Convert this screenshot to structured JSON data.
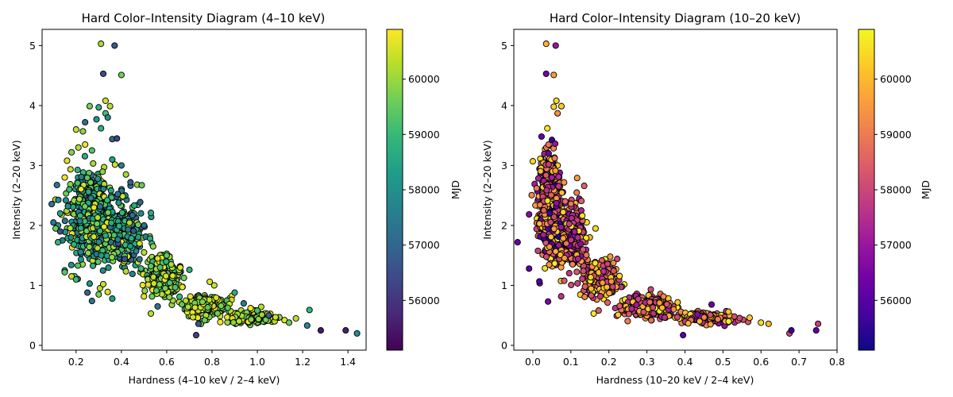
{
  "chart_data": [
    {
      "type": "scatter",
      "title": "Hard Color–Intensity Diagram (4–10 keV)",
      "xlabel": "Hardness (4–10 keV / 2–4 keV)",
      "ylabel": "Intensity (2–20 keV)",
      "xlim": [
        0.05,
        1.48
      ],
      "ylim": [
        -0.08,
        5.27
      ],
      "xticks": [
        0.2,
        0.4,
        0.6,
        0.8,
        1.0,
        1.2,
        1.4
      ],
      "xtick_labels": [
        "0.2",
        "0.4",
        "0.6",
        "0.8",
        "1.0",
        "1.2",
        "1.4"
      ],
      "yticks": [
        0,
        1,
        2,
        3,
        4,
        5
      ],
      "ytick_labels": [
        "0",
        "1",
        "2",
        "3",
        "4",
        "5"
      ],
      "colormap": "viridis",
      "colormap_colors": [
        "#440154",
        "#482878",
        "#3e4989",
        "#31688e",
        "#26828e",
        "#1f9e89",
        "#35b779",
        "#6ece58",
        "#b5de2b",
        "#fde725"
      ],
      "colorbar_label": "MJD",
      "colorbar_range": [
        55100,
        60900
      ],
      "colorbar_ticks": [
        56000,
        57000,
        58000,
        59000,
        60000
      ],
      "colorbar_tick_labels": [
        "56000",
        "57000",
        "58000",
        "59000",
        "60000"
      ],
      "grid": false,
      "points": [
        {
          "x": 0.31,
          "y": 5.03,
          "c": 60150
        },
        {
          "x": 0.37,
          "y": 5.0,
          "c": 56700
        },
        {
          "x": 0.32,
          "y": 4.53,
          "c": 56400
        },
        {
          "x": 0.4,
          "y": 4.51,
          "c": 59600
        },
        {
          "x": 0.33,
          "y": 4.08,
          "c": 60500
        },
        {
          "x": 0.26,
          "y": 3.99,
          "c": 59700
        },
        {
          "x": 0.3,
          "y": 3.97,
          "c": 58700
        },
        {
          "x": 0.35,
          "y": 3.99,
          "c": 60300
        },
        {
          "x": 0.29,
          "y": 3.77,
          "c": 58200
        },
        {
          "x": 0.24,
          "y": 3.72,
          "c": 57200
        },
        {
          "x": 0.33,
          "y": 3.87,
          "c": 59200
        },
        {
          "x": 0.34,
          "y": 3.8,
          "c": 57900
        },
        {
          "x": 0.2,
          "y": 3.6,
          "c": 60400
        },
        {
          "x": 0.23,
          "y": 3.57,
          "c": 59900
        },
        {
          "x": 0.31,
          "y": 3.62,
          "c": 58800
        },
        {
          "x": 0.36,
          "y": 3.44,
          "c": 57100
        },
        {
          "x": 0.38,
          "y": 3.45,
          "c": 56300
        },
        {
          "x": 0.24,
          "y": 3.35,
          "c": 60700
        },
        {
          "x": 0.27,
          "y": 3.25,
          "c": 59300
        },
        {
          "x": 0.21,
          "y": 3.3,
          "c": 60200
        },
        {
          "x": 0.18,
          "y": 3.22,
          "c": 59800
        },
        {
          "x": 0.16,
          "y": 3.08,
          "c": 60600
        },
        {
          "x": 0.36,
          "y": 3.1,
          "c": 58400
        },
        {
          "x": 0.4,
          "y": 3.0,
          "c": 57600
        },
        {
          "x": 0.42,
          "y": 2.85,
          "c": 60100
        },
        {
          "x": 0.44,
          "y": 2.72,
          "c": 56800
        },
        {
          "x": 0.47,
          "y": 2.68,
          "c": 60000
        },
        {
          "x": 0.49,
          "y": 2.67,
          "c": 59500
        },
        {
          "x": 0.15,
          "y": 2.8,
          "c": 60800
        },
        {
          "x": 0.17,
          "y": 2.6,
          "c": 59000
        },
        {
          "x": 0.13,
          "y": 2.2,
          "c": 58500
        },
        {
          "x": 0.12,
          "y": 2.0,
          "c": 58100
        },
        {
          "x": 0.1,
          "y": 2.05,
          "c": 57400
        },
        {
          "x": 0.11,
          "y": 1.95,
          "c": 59600
        },
        {
          "x": 0.13,
          "y": 1.9,
          "c": 56500
        },
        {
          "x": 0.14,
          "y": 1.75,
          "c": 57700
        },
        {
          "x": 0.12,
          "y": 1.72,
          "c": 58900
        },
        {
          "x": 0.15,
          "y": 1.25,
          "c": 58600
        },
        {
          "x": 0.15,
          "y": 1.22,
          "c": 59400
        },
        {
          "x": 0.18,
          "y": 1.15,
          "c": 60300
        },
        {
          "x": 0.2,
          "y": 1.1,
          "c": 59100
        },
        {
          "x": 0.25,
          "y": 0.88,
          "c": 56900
        },
        {
          "x": 0.27,
          "y": 0.74,
          "c": 57300
        },
        {
          "x": 0.3,
          "y": 0.85,
          "c": 59700
        },
        {
          "x": 0.36,
          "y": 0.78,
          "c": 58300
        },
        {
          "x": 0.32,
          "y": 1.02,
          "c": 60400
        },
        {
          "x": 0.26,
          "y": 1.03,
          "c": 58000
        },
        {
          "x": 0.53,
          "y": 2.21,
          "c": 58600
        },
        {
          "x": 0.5,
          "y": 2.0,
          "c": 57200
        },
        {
          "x": 0.48,
          "y": 1.7,
          "c": 60500
        },
        {
          "x": 0.5,
          "y": 1.55,
          "c": 60200
        },
        {
          "x": 0.54,
          "y": 1.65,
          "c": 59900
        },
        {
          "x": 0.56,
          "y": 1.45,
          "c": 60600
        },
        {
          "x": 0.6,
          "y": 1.5,
          "c": 59400
        },
        {
          "x": 0.62,
          "y": 1.35,
          "c": 60100
        },
        {
          "x": 0.66,
          "y": 1.3,
          "c": 60700
        },
        {
          "x": 0.7,
          "y": 1.26,
          "c": 58800
        },
        {
          "x": 0.53,
          "y": 0.53,
          "c": 60300
        },
        {
          "x": 0.56,
          "y": 0.65,
          "c": 57400
        },
        {
          "x": 0.73,
          "y": 0.17,
          "c": 56200
        },
        {
          "x": 0.74,
          "y": 0.36,
          "c": 56600
        },
        {
          "x": 0.79,
          "y": 1.06,
          "c": 60600
        },
        {
          "x": 0.81,
          "y": 1.0,
          "c": 60400
        },
        {
          "x": 0.9,
          "y": 0.88,
          "c": 58700
        },
        {
          "x": 0.94,
          "y": 0.7,
          "c": 57500
        },
        {
          "x": 0.97,
          "y": 0.62,
          "c": 60800
        },
        {
          "x": 1.0,
          "y": 0.58,
          "c": 59200
        },
        {
          "x": 1.02,
          "y": 0.51,
          "c": 60000
        },
        {
          "x": 1.05,
          "y": 0.5,
          "c": 56800
        },
        {
          "x": 1.08,
          "y": 0.47,
          "c": 60500
        },
        {
          "x": 1.12,
          "y": 0.42,
          "c": 60700
        },
        {
          "x": 1.14,
          "y": 0.38,
          "c": 59500
        },
        {
          "x": 1.17,
          "y": 0.45,
          "c": 60300
        },
        {
          "x": 1.22,
          "y": 0.33,
          "c": 57800
        },
        {
          "x": 1.23,
          "y": 0.59,
          "c": 58900
        },
        {
          "x": 1.28,
          "y": 0.25,
          "c": 55500
        },
        {
          "x": 1.39,
          "y": 0.25,
          "c": 55600
        },
        {
          "x": 1.44,
          "y": 0.2,
          "c": 57900
        }
      ],
      "point_cloud": [
        {
          "x_center": 0.27,
          "x_spread": 0.09,
          "y_center": 2.15,
          "y_spread": 0.6,
          "count": 620,
          "c_min": 57300,
          "c_max": 60800
        },
        {
          "x_center": 0.42,
          "x_spread": 0.06,
          "y_center": 1.85,
          "y_spread": 0.4,
          "count": 240,
          "c_min": 56500,
          "c_max": 60800
        },
        {
          "x_center": 0.58,
          "x_spread": 0.07,
          "y_center": 1.15,
          "y_spread": 0.28,
          "count": 230,
          "c_min": 58800,
          "c_max": 60800
        },
        {
          "x_center": 0.77,
          "x_spread": 0.08,
          "y_center": 0.65,
          "y_spread": 0.15,
          "count": 280,
          "c_min": 59200,
          "c_max": 60800
        },
        {
          "x_center": 0.98,
          "x_spread": 0.08,
          "y_center": 0.46,
          "y_spread": 0.08,
          "count": 170,
          "c_min": 59500,
          "c_max": 60800
        }
      ]
    },
    {
      "type": "scatter",
      "title": "Hard Color–Intensity Diagram (10–20 keV)",
      "xlabel": "Hardness (10–20 keV / 2–4 keV)",
      "ylabel": "Intensity (2–20 keV)",
      "xlim": [
        -0.05,
        0.8
      ],
      "ylim": [
        -0.08,
        5.27
      ],
      "xticks": [
        0.0,
        0.1,
        0.2,
        0.3,
        0.4,
        0.5,
        0.6,
        0.7,
        0.8
      ],
      "xtick_labels": [
        "0.0",
        "0.1",
        "0.2",
        "0.3",
        "0.4",
        "0.5",
        "0.6",
        "0.7",
        "0.8"
      ],
      "yticks": [
        0,
        1,
        2,
        3,
        4,
        5
      ],
      "ytick_labels": [
        "0",
        "1",
        "2",
        "3",
        "4",
        "5"
      ],
      "colormap": "plasma",
      "colormap_colors": [
        "#0d0887",
        "#46039f",
        "#7201a8",
        "#9c179e",
        "#bd3786",
        "#d8576b",
        "#ed7953",
        "#fb9f3a",
        "#fdca26",
        "#f0f921"
      ],
      "colorbar_label": "MJD",
      "colorbar_range": [
        55100,
        60900
      ],
      "colorbar_ticks": [
        56000,
        57000,
        58000,
        59000,
        60000
      ],
      "colorbar_tick_labels": [
        "56000",
        "57000",
        "58000",
        "59000",
        "60000"
      ],
      "grid": false,
      "points": [
        {
          "x": 0.035,
          "y": 5.03,
          "c": 59900
        },
        {
          "x": 0.06,
          "y": 5.0,
          "c": 57000
        },
        {
          "x": 0.035,
          "y": 4.53,
          "c": 56400
        },
        {
          "x": 0.055,
          "y": 4.51,
          "c": 59600
        },
        {
          "x": 0.062,
          "y": 4.08,
          "c": 60500
        },
        {
          "x": 0.075,
          "y": 3.99,
          "c": 60300
        },
        {
          "x": 0.055,
          "y": 3.98,
          "c": 60400
        },
        {
          "x": 0.065,
          "y": 3.87,
          "c": 59300
        },
        {
          "x": -0.04,
          "y": 1.72,
          "c": 56200
        },
        {
          "x": -0.01,
          "y": 1.28,
          "c": 56000
        },
        {
          "x": 0.0,
          "y": 3.07,
          "c": 60400
        },
        {
          "x": 0.01,
          "y": 2.62,
          "c": 59000
        },
        {
          "x": 0.135,
          "y": 2.66,
          "c": 58500
        },
        {
          "x": 0.165,
          "y": 1.95,
          "c": 60500
        },
        {
          "x": 0.16,
          "y": 0.53,
          "c": 60700
        },
        {
          "x": 0.04,
          "y": 0.73,
          "c": 56500
        },
        {
          "x": 0.395,
          "y": 0.17,
          "c": 56000
        },
        {
          "x": 0.47,
          "y": 0.68,
          "c": 56300
        },
        {
          "x": 0.57,
          "y": 0.46,
          "c": 60200
        },
        {
          "x": 0.6,
          "y": 0.38,
          "c": 60500
        },
        {
          "x": 0.62,
          "y": 0.36,
          "c": 60000
        },
        {
          "x": 0.675,
          "y": 0.2,
          "c": 58000
        },
        {
          "x": 0.68,
          "y": 0.25,
          "c": 55600
        },
        {
          "x": 0.745,
          "y": 0.25,
          "c": 56100
        },
        {
          "x": 0.75,
          "y": 0.36,
          "c": 57800
        },
        {
          "x": 0.53,
          "y": 0.48,
          "c": 58200
        },
        {
          "x": 0.515,
          "y": 0.4,
          "c": 60800
        }
      ],
      "point_cloud": [
        {
          "x_center": 0.045,
          "x_spread": 0.025,
          "y_center": 2.3,
          "y_spread": 0.7,
          "count": 700,
          "c_min": 55300,
          "c_max": 60800
        },
        {
          "x_center": 0.1,
          "x_spread": 0.03,
          "y_center": 1.8,
          "y_spread": 0.45,
          "count": 330,
          "c_min": 56500,
          "c_max": 60800
        },
        {
          "x_center": 0.18,
          "x_spread": 0.04,
          "y_center": 1.1,
          "y_spread": 0.25,
          "count": 230,
          "c_min": 57500,
          "c_max": 60800
        },
        {
          "x_center": 0.3,
          "x_spread": 0.06,
          "y_center": 0.65,
          "y_spread": 0.14,
          "count": 280,
          "c_min": 57000,
          "c_max": 60800
        },
        {
          "x_center": 0.45,
          "x_spread": 0.06,
          "y_center": 0.45,
          "y_spread": 0.08,
          "count": 160,
          "c_min": 56500,
          "c_max": 60800
        }
      ]
    }
  ]
}
